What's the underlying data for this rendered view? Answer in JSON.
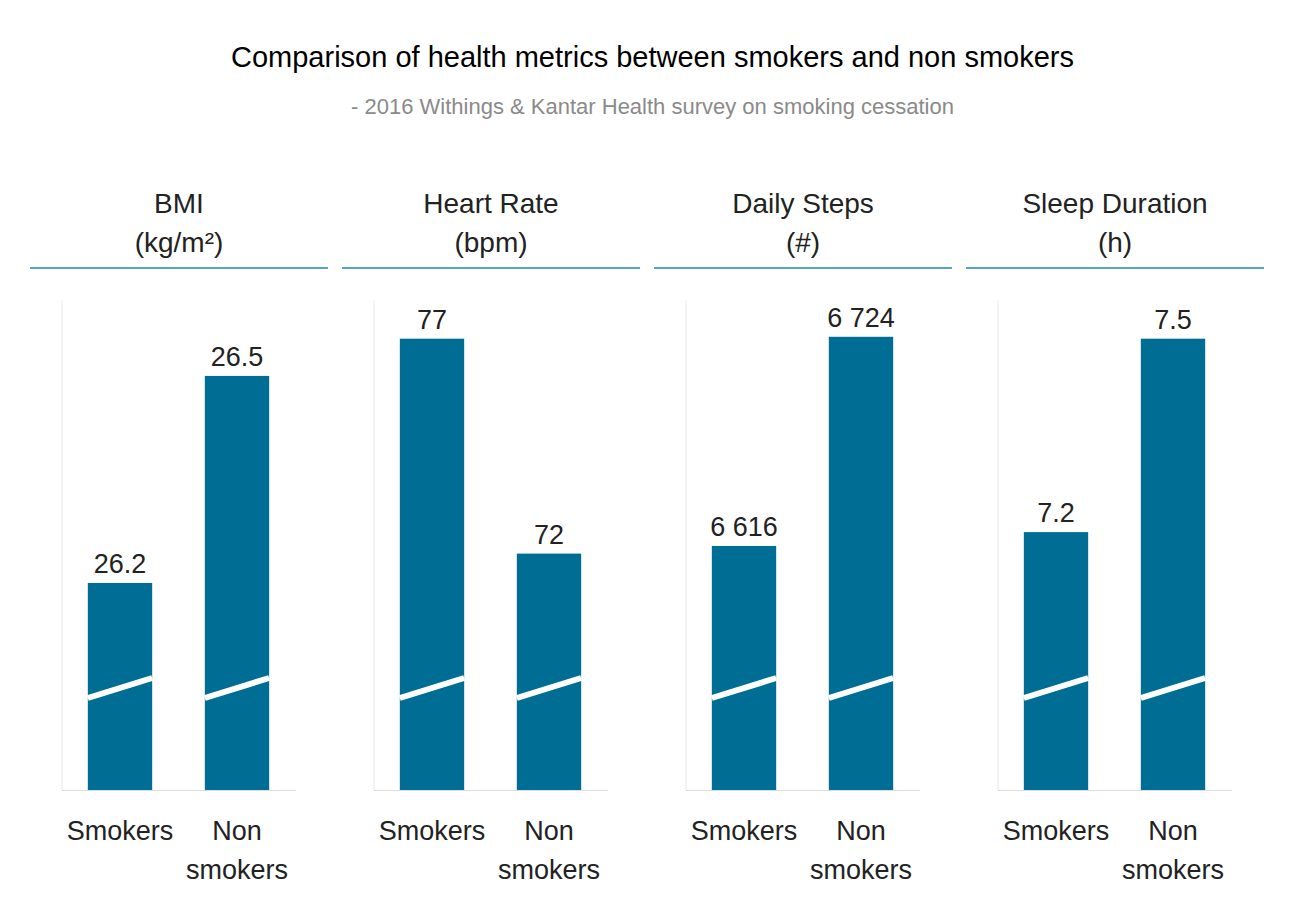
{
  "title": "Comparison of health metrics between smokers and non smokers",
  "subtitle": "- 2016 Withings & Kantar Health survey on smoking cessation",
  "chart_data": [
    {
      "type": "bar",
      "title": "BMI",
      "subtitle": "(kg/m²)",
      "categories": [
        "Smokers",
        "Non smokers"
      ],
      "values": [
        26.2,
        26.5
      ],
      "color": "#006e94",
      "ylim": [
        25.9,
        26.61
      ],
      "data_labels": true,
      "tick_labels": "x"
    },
    {
      "type": "bar",
      "title": "Heart Rate",
      "subtitle": "(bpm)",
      "categories": [
        "Smokers",
        "Non smokers"
      ],
      "values": [
        77,
        72
      ],
      "color": "#006e94",
      "ylim": [
        66.5,
        77.9
      ],
      "data_labels": true,
      "tick_labels": "x"
    },
    {
      "type": "bar",
      "title": "Daily Steps",
      "subtitle": "(#)",
      "categories": [
        "Smokers",
        "Non smokers"
      ],
      "values": [
        6616,
        6724
      ],
      "value_labels": [
        "6 616",
        "6 724"
      ],
      "color": "#006e94",
      "ylim": [
        6490,
        6743
      ],
      "data_labels": true,
      "tick_labels": "x"
    },
    {
      "type": "bar",
      "title": "Sleep Duration",
      "subtitle": "(h)",
      "categories": [
        "Smokers",
        "Non smokers"
      ],
      "values": [
        7.2,
        7.5
      ],
      "color": "#006e94",
      "ylim": [
        6.8,
        7.56
      ],
      "data_labels": true,
      "tick_labels": "x"
    }
  ]
}
